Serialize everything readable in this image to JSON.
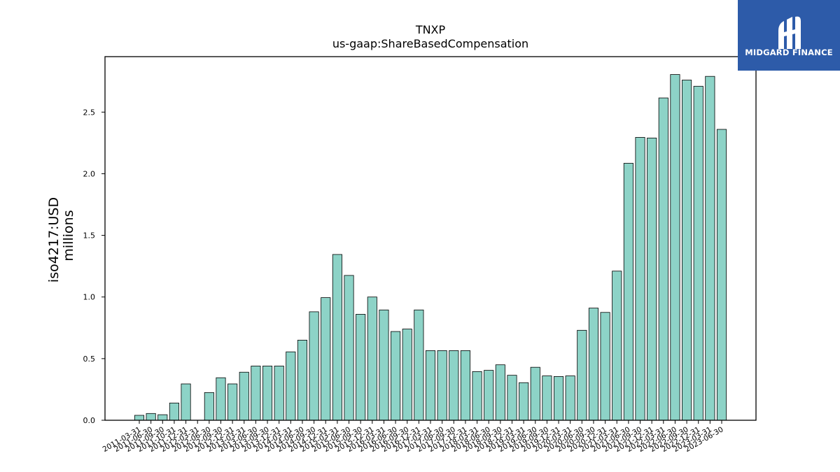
{
  "logo": {
    "text": "MIDGARD FINANCE",
    "color": "#2d5ba9"
  },
  "chart_data": {
    "type": "bar",
    "title": "TNXP",
    "subtitle": "us-gaap:ShareBasedCompensation",
    "ylabel": "iso4217:USD",
    "ylabel2": "millions",
    "ylim": [
      0,
      2.95
    ],
    "yticks": [
      0.0,
      0.5,
      1.0,
      1.5,
      2.0,
      2.5
    ],
    "ytick_labels": [
      "0.0",
      "0.5",
      "1.0",
      "1.5",
      "2.0",
      "2.5"
    ],
    "bar_color": "#8dd3c7",
    "edge_color": "#000000",
    "grid": false,
    "categories": [
      "2011-03-31",
      "2011-06-30",
      "2011-09-30",
      "2011-10-31",
      "2011-12-31",
      "2012-03-31",
      "2012-06-30",
      "2012-09-30",
      "2012-12-31",
      "2013-03-31",
      "2013-06-30",
      "2013-09-30",
      "2013-12-31",
      "2014-03-31",
      "2014-06-30",
      "2014-09-30",
      "2014-12-31",
      "2015-03-31",
      "2015-06-30",
      "2015-09-30",
      "2015-12-31",
      "2016-03-31",
      "2016-06-30",
      "2016-09-30",
      "2016-12-31",
      "2017-03-31",
      "2017-06-30",
      "2017-09-30",
      "2017-12-31",
      "2018-03-31",
      "2018-06-30",
      "2018-09-30",
      "2018-12-31",
      "2019-03-31",
      "2019-06-30",
      "2019-09-30",
      "2019-12-31",
      "2020-03-31",
      "2020-06-30",
      "2020-09-30",
      "2020-12-31",
      "2021-03-31",
      "2021-06-30",
      "2021-09-30",
      "2021-12-31",
      "2022-03-31",
      "2022-06-30",
      "2022-09-30",
      "2022-12-31",
      "2023-03-31",
      "2023-06-30"
    ],
    "values": [
      0.04,
      0.055,
      0.045,
      0.14,
      0.295,
      null,
      0.225,
      0.345,
      0.295,
      0.39,
      0.44,
      0.44,
      0.44,
      0.555,
      0.65,
      0.88,
      0.995,
      1.345,
      1.175,
      0.86,
      1.0,
      0.895,
      0.72,
      0.74,
      0.895,
      0.565,
      0.565,
      0.565,
      0.565,
      0.395,
      0.405,
      0.45,
      0.365,
      0.305,
      0.43,
      0.36,
      0.355,
      0.36,
      0.73,
      0.91,
      0.875,
      1.21,
      2.085,
      2.295,
      2.29,
      2.615,
      2.805,
      2.76,
      2.71,
      2.79,
      2.36
    ]
  }
}
